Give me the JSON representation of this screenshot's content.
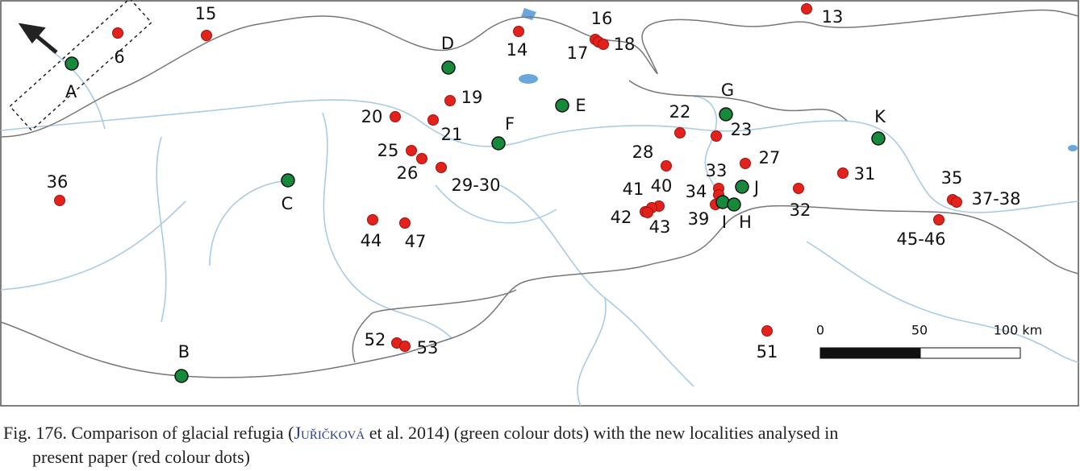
{
  "map": {
    "red_sites": [
      "15",
      "6",
      "14",
      "16",
      "17",
      "18",
      "13",
      "19",
      "20",
      "21",
      "22",
      "23",
      "25",
      "26",
      "29-30",
      "28",
      "27",
      "31",
      "33",
      "34",
      "39",
      "40",
      "41",
      "42",
      "43",
      "32",
      "35",
      "37-38",
      "45-46",
      "36",
      "44",
      "47",
      "52",
      "53",
      "51"
    ],
    "green_sites": [
      "A",
      "D",
      "E",
      "F",
      "G",
      "K",
      "C",
      "J",
      "I",
      "H",
      "B"
    ],
    "scale_bar": [
      "0",
      "50",
      "100 km"
    ]
  },
  "caption": {
    "before": "Fig. 176. Comparison of glacial refugia (",
    "author": "Juřičková",
    "after": " et al. 2014) (green colour dots) with the new localities analysed in",
    "line2": "present paper (red colour dots)"
  }
}
